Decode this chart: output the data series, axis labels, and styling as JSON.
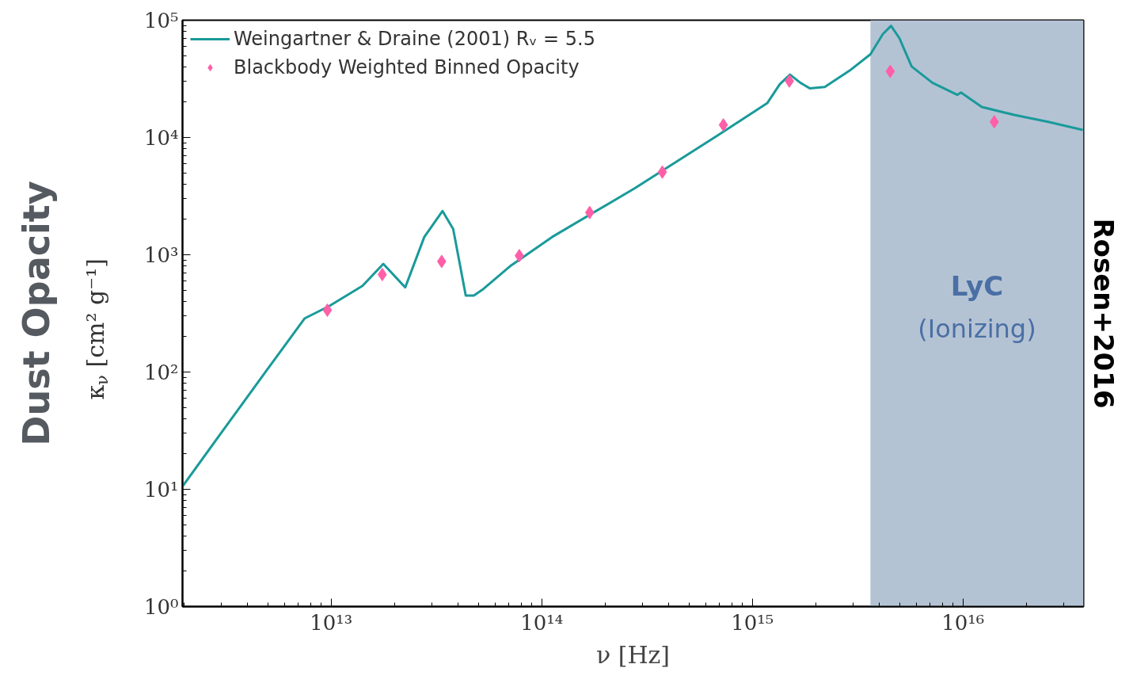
{
  "chart_data": {
    "type": "line",
    "xlabel": "ν [Hz]",
    "ylabel": "κ$_{ν}$ [cm² g⁻¹]",
    "log": "xy",
    "grid": false,
    "legend": "top left",
    "xlim": [
      1970000000000.0,
      3.74e+16
    ],
    "ylim": [
      1,
      100000
    ],
    "xticks": [
      {
        "value": 10000000000000.0,
        "label": "10¹³"
      },
      {
        "value": 100000000000000.0,
        "label": "10¹⁴"
      },
      {
        "value": 1000000000000000.0,
        "label": "10¹⁵"
      },
      {
        "value": 1e+16,
        "label": "10¹⁶"
      }
    ],
    "yticks": [
      {
        "value": 1,
        "label": "10⁰"
      },
      {
        "value": 10,
        "label": "10¹"
      },
      {
        "value": 100,
        "label": "10²"
      },
      {
        "value": 1000,
        "label": "10³"
      },
      {
        "value": 10000,
        "label": "10⁴"
      },
      {
        "value": 100000,
        "label": "10⁵"
      }
    ],
    "bands": [
      {
        "axis": "x",
        "from": 3640000000000000.0,
        "to": 3.74e+16,
        "label": "LyC",
        "color": "#b4c3d4"
      }
    ],
    "annotations": [
      "Dust Opacity",
      "Rosen+2016",
      "(Ionizing)"
    ],
    "series": [
      {
        "name": "Weingartner & Draine (2001) Rᵥ = 5.5",
        "color": "#1a9a9a",
        "marker": "none",
        "line_style": "solid",
        "x": [
          1970000000000.0,
          3030000000000.0,
          4760000000000.0,
          7500000000000.0,
          9800000000000.0,
          14100000000000.0,
          17700000000000.0,
          22500000000000.0,
          27700000000000.0,
          33800000000000.0,
          38000000000000.0,
          43600000000000.0,
          47600000000000.0,
          52200000000000.0,
          71600000000000.0,
          112000000000000.0,
          277000000000000.0,
          684000000000000.0,
          1180000000000000.0,
          1350000000000000.0,
          1510000000000000.0,
          1690000000000000.0,
          1880000000000000.0,
          2210000000000000.0,
          2900000000000000.0,
          3640000000000000.0,
          4170000000000000.0,
          4560000000000000.0,
          4990000000000000.0,
          5710000000000000.0,
          7160000000000000.0,
          9400000000000000.0,
          9800000000000000.0,
          1.23e+16,
          1.77e+16,
          2.54e+16,
          3.71e+16
        ],
        "values": [
          10.6,
          30.8,
          94,
          287,
          365,
          543,
          836,
          527,
          1416,
          2360,
          1660,
          449,
          449,
          502,
          811,
          1416,
          3690,
          10400,
          19700,
          28400,
          34400,
          29300,
          26200,
          27000,
          37200,
          51200,
          76200,
          89500,
          70500,
          40300,
          29300,
          23100,
          24200,
          18200,
          15500,
          13600,
          11600
        ]
      },
      {
        "name": "Blackbody Weighted Binned Opacity",
        "type": "scatter",
        "color": "#ff5fa8",
        "marker": "diamond",
        "x": [
          9600000000000.0,
          17500000000000.0,
          33500000000000.0,
          78300000000000.0,
          169000000000000.0,
          374000000000000.0,
          729000000000000.0,
          1500000000000000.0,
          4520000000000000.0,
          1.41e+16
        ],
        "values": [
          337,
          679,
          877,
          982,
          2290,
          5070,
          12800,
          30300,
          36600,
          13600
        ]
      }
    ]
  }
}
